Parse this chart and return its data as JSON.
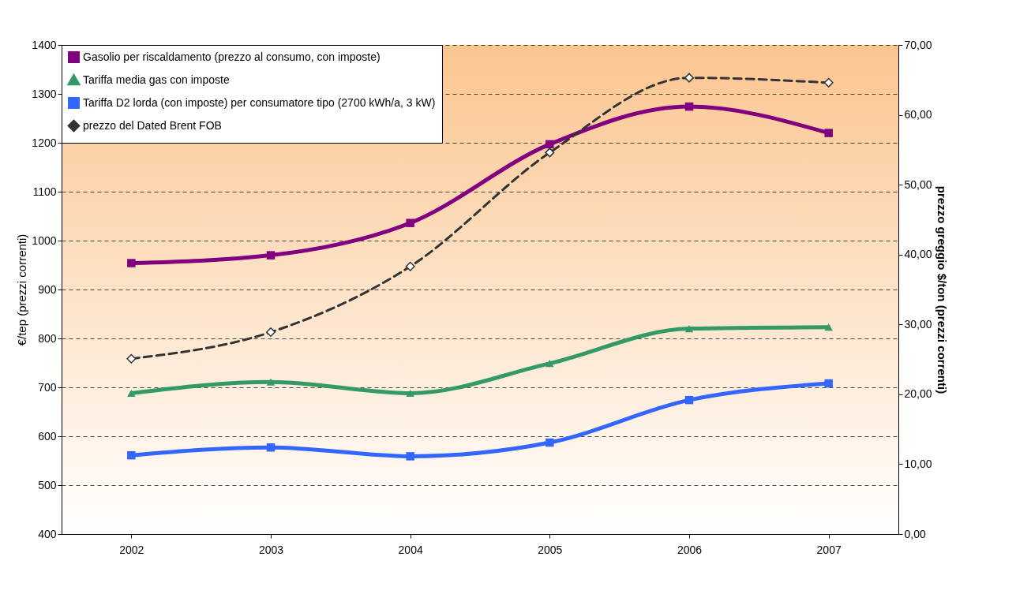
{
  "chart_data": {
    "type": "line",
    "categories": [
      "2002",
      "2003",
      "2004",
      "2005",
      "2006",
      "2007"
    ],
    "ylabel": "€/tep (prezzi correnti)",
    "y2label": "prezzo greggio  $/ton (prezzi correnti)",
    "ylim": [
      400,
      1400
    ],
    "yticks": [
      400,
      500,
      600,
      700,
      800,
      900,
      1000,
      1100,
      1200,
      1300,
      1400
    ],
    "y2lim": [
      0,
      70
    ],
    "y2ticks": [
      {
        "value": 0,
        "label": "0,00"
      },
      {
        "value": 10,
        "label": "10,00"
      },
      {
        "value": 20,
        "label": "20,00"
      },
      {
        "value": 30,
        "label": "30,00"
      },
      {
        "value": 40,
        "label": "40,00"
      },
      {
        "value": 50,
        "label": "50,00"
      },
      {
        "value": 60,
        "label": "60,00"
      },
      {
        "value": 70,
        "label": "70,00"
      }
    ],
    "grid": "y",
    "legend": "top left",
    "series": [
      {
        "name": "Gasolio per riscaldamento (prezzo al consumo, con imposte)",
        "color": "#800080",
        "marker": "square",
        "line_style": "solid",
        "values": [
          954,
          970,
          1036,
          1197,
          1274,
          1220
        ]
      },
      {
        "name": "Tariffa media gas con imposte",
        "color": "#339966",
        "marker": "triangle",
        "line_style": "solid",
        "values": [
          688,
          711,
          688,
          749,
          820,
          823
        ]
      },
      {
        "name": "Tariffa D2 lorda (con imposte) per consumatore tipo (2700 kWh/a, 3 kW)",
        "color": "#3366ff",
        "marker": "square",
        "line_style": "solid",
        "values": [
          561,
          577,
          559,
          587,
          674,
          708
        ]
      },
      {
        "name": "prezzo del Dated Brent FOB",
        "color": "#333333",
        "marker": "diamond",
        "line_style": "dashed",
        "axis": "y2",
        "values": [
          25.1,
          28.9,
          38.3,
          54.6,
          65.3,
          64.6
        ]
      }
    ]
  }
}
